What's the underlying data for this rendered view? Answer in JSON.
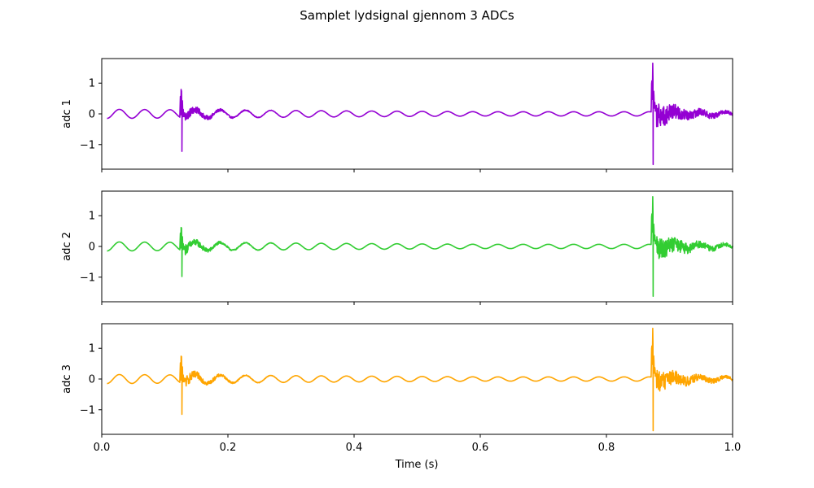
{
  "chart_data": {
    "type": "line",
    "title": "Samplet lydsignal gjennom 3 ADCs",
    "xlabel": "Time (s)",
    "xlim": [
      0.0,
      1.0
    ],
    "ylim": [
      -1.8,
      1.8
    ],
    "x_ticks": [
      0.0,
      0.2,
      0.4,
      0.6,
      0.8,
      1.0
    ],
    "x_tick_labels": [
      "0.0",
      "0.2",
      "0.4",
      "0.6",
      "0.8",
      "1.0"
    ],
    "y_ticks": [
      1,
      0,
      -1
    ],
    "y_tick_labels": [
      "1",
      "0",
      "−1"
    ],
    "shared_x": true,
    "grid": false,
    "series": [
      {
        "ylabel": "adc 1",
        "color": "#9400d3",
        "baseline_sine": {
          "amplitude_start": 0.15,
          "amplitude_end": 0.07,
          "frequency_hz": 25
        },
        "events": [
          {
            "time": 0.126,
            "max": 0.75,
            "min": -1.22,
            "tail_amplitude": 0.2,
            "tail_decay_s": 0.04
          },
          {
            "time": 0.873,
            "max": 1.65,
            "min": -1.65,
            "tail_amplitude": 0.45,
            "tail_decay_s": 0.06
          }
        ]
      },
      {
        "ylabel": "adc 2",
        "color": "#32cd32",
        "baseline_sine": {
          "amplitude_start": 0.15,
          "amplitude_end": 0.07,
          "frequency_hz": 25
        },
        "events": [
          {
            "time": 0.126,
            "max": 0.6,
            "min": -0.98,
            "tail_amplitude": 0.2,
            "tail_decay_s": 0.04
          },
          {
            "time": 0.873,
            "max": 1.62,
            "min": -1.62,
            "tail_amplitude": 0.42,
            "tail_decay_s": 0.06
          }
        ]
      },
      {
        "ylabel": "adc 3",
        "color": "#ffa500",
        "baseline_sine": {
          "amplitude_start": 0.15,
          "amplitude_end": 0.07,
          "frequency_hz": 25
        },
        "events": [
          {
            "time": 0.126,
            "max": 0.73,
            "min": -1.15,
            "tail_amplitude": 0.22,
            "tail_decay_s": 0.04
          },
          {
            "time": 0.873,
            "max": 1.65,
            "min": -1.68,
            "tail_amplitude": 0.4,
            "tail_decay_s": 0.06
          }
        ]
      }
    ]
  }
}
